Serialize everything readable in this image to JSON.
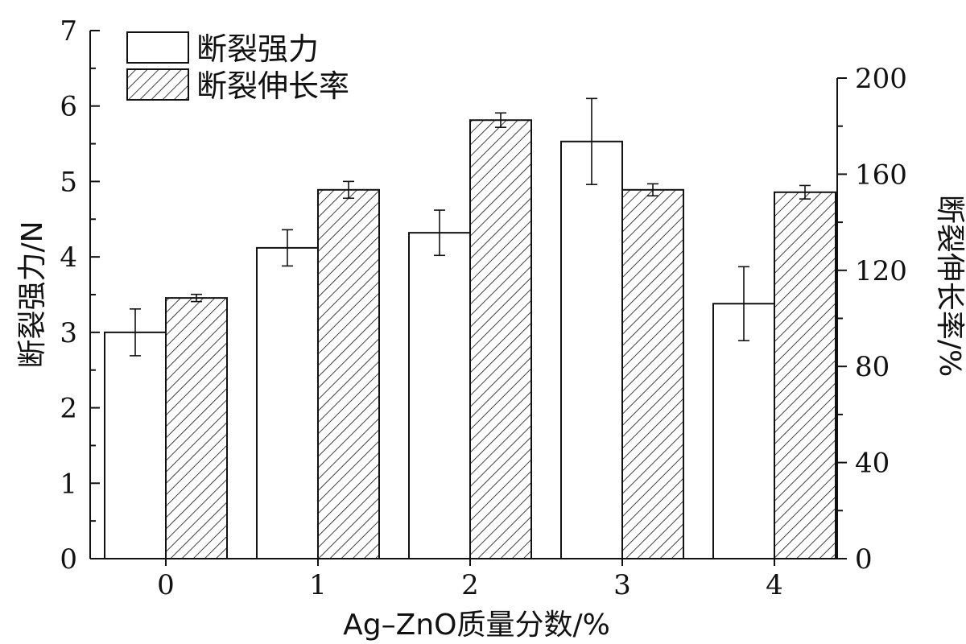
{
  "chart_data": {
    "type": "bar",
    "title": "",
    "categories": [
      "0",
      "1",
      "2",
      "3",
      "4"
    ],
    "xlabel": "Ag–ZnO质量分数/%",
    "ylabel": "断裂强力/N",
    "y2label": "断裂伸长率/%",
    "ylim": [
      0,
      7
    ],
    "y2lim": [
      0,
      200
    ],
    "yticks": [
      "0",
      "1",
      "2",
      "3",
      "4",
      "5",
      "6",
      "7"
    ],
    "y2ticks": [
      "0",
      "40",
      "80",
      "120",
      "160",
      "200"
    ],
    "legend_position": "top-left",
    "grid": false,
    "series": [
      {
        "name": "断裂强力",
        "axis": "left",
        "values": [
          3.0,
          4.12,
          4.32,
          5.53,
          3.38
        ],
        "errors": [
          0.31,
          0.24,
          0.3,
          0.57,
          0.49
        ],
        "fill": "#ffffff"
      },
      {
        "name": "断裂伸长率",
        "axis": "right",
        "values": [
          108.5,
          153.5,
          182.5,
          153.5,
          152.5
        ],
        "errors": [
          1.5,
          3.5,
          3.0,
          2.5,
          2.8
        ],
        "fill": "hatch"
      }
    ]
  }
}
